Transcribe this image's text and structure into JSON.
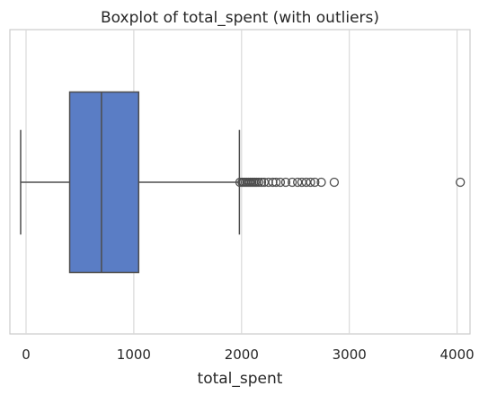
{
  "chart_data": {
    "type": "box",
    "title": "Boxplot of total_spent (with outliers)",
    "xlabel": "total_spent",
    "ylabel": "",
    "xlim": [
      -150,
      4120
    ],
    "xticks": [
      0,
      1000,
      2000,
      3000,
      4000
    ],
    "xtick_labels": [
      "0",
      "1000",
      "2000",
      "3000",
      "4000"
    ],
    "orientation": "horizontal",
    "grid": "vertical",
    "box": {
      "whisker_low": -50,
      "q1": 405,
      "median": 700,
      "q3": 1045,
      "whisker_high": 1980
    },
    "outliers": [
      1985,
      2005,
      2020,
      2035,
      2050,
      2065,
      2080,
      2095,
      2110,
      2125,
      2140,
      2160,
      2185,
      2210,
      2250,
      2290,
      2320,
      2360,
      2410,
      2470,
      2520,
      2560,
      2600,
      2640,
      2680,
      2740,
      2860,
      4030
    ],
    "box_color": "#5a7dc5",
    "line_color": "#4d4d4d"
  }
}
